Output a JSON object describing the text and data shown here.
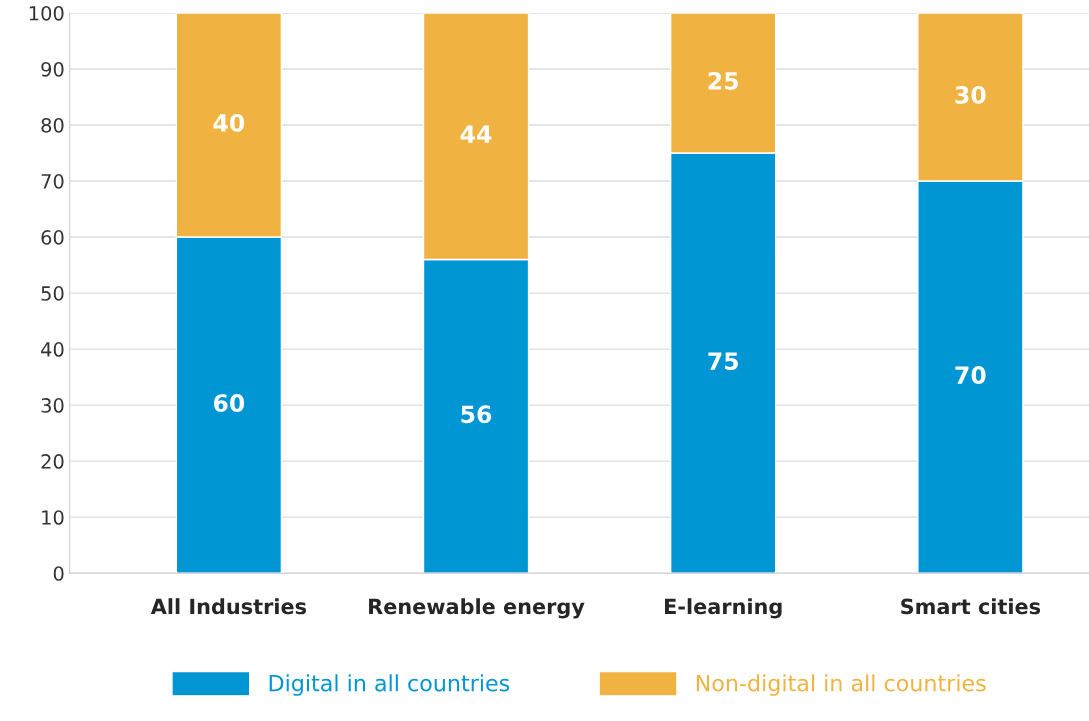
{
  "chart_data": {
    "type": "bar",
    "stacked": true,
    "categories": [
      "All Industries",
      "Renewable energy",
      "E-learning",
      "Smart cities"
    ],
    "series": [
      {
        "name": "Digital in all countries",
        "color": "#0095d3",
        "values": [
          60,
          56,
          75,
          70
        ]
      },
      {
        "name": "Non-digital in all countries",
        "color": "#f0b342",
        "values": [
          40,
          44,
          25,
          30
        ]
      }
    ],
    "ylim": [
      0,
      100
    ],
    "yticks": [
      0,
      10,
      20,
      30,
      40,
      50,
      60,
      70,
      80,
      90,
      100
    ],
    "grid": "y",
    "legend": "bottom",
    "data_labels": true
  }
}
